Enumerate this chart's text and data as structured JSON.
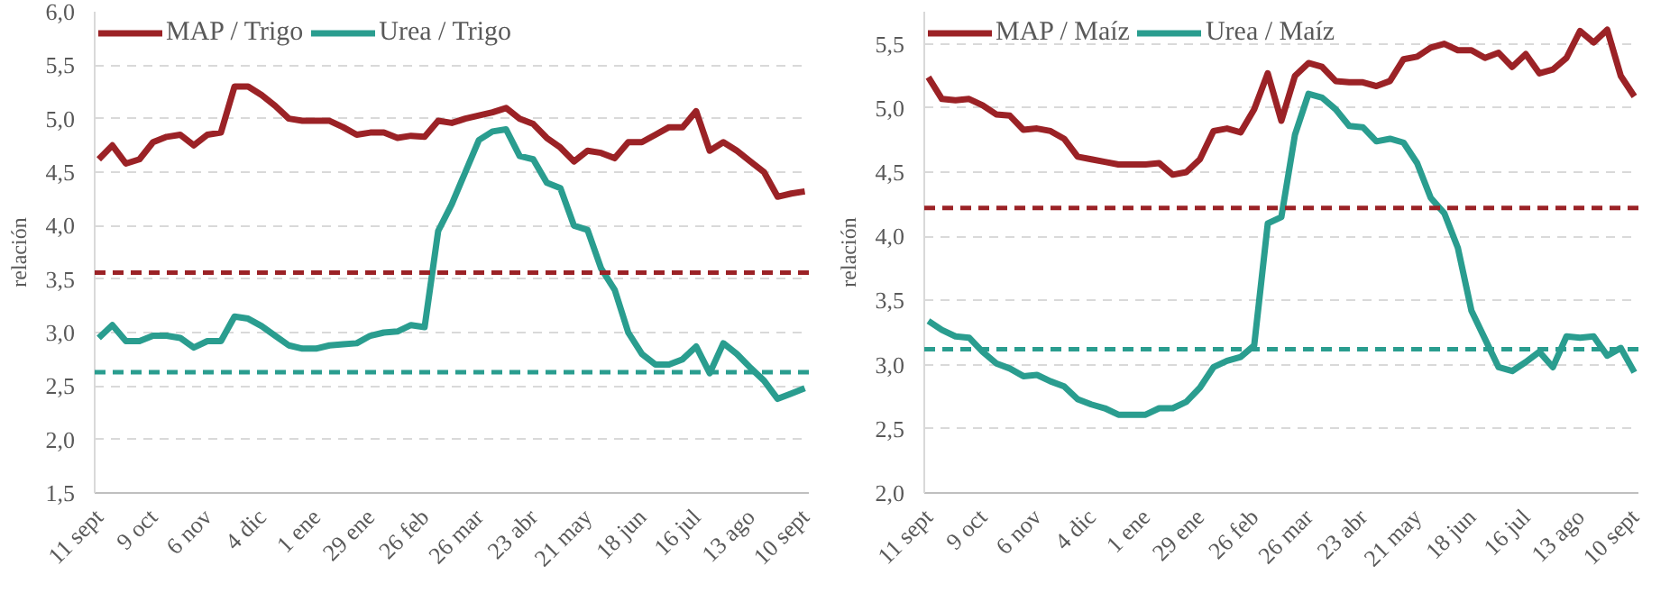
{
  "chart_data": [
    {
      "type": "line",
      "ylabel": "relación",
      "legend": "top left",
      "grid": "y",
      "line_style": "solid",
      "marker": "none",
      "categories": [
        "11 sept",
        null,
        null,
        null,
        "9 oct",
        null,
        null,
        null,
        "6 nov",
        null,
        null,
        null,
        "4 dic",
        null,
        null,
        null,
        "1 ene",
        null,
        null,
        null,
        "29 ene",
        null,
        null,
        null,
        "26 feb",
        null,
        null,
        null,
        "26 mar",
        null,
        null,
        null,
        "23 abr",
        null,
        null,
        null,
        "21 may",
        null,
        null,
        null,
        "18 jun",
        null,
        null,
        null,
        "16 jul",
        null,
        null,
        null,
        "13 ago",
        null,
        null,
        null,
        "10 sept"
      ],
      "ylim": [
        1.5,
        6.0
      ],
      "yticks": [
        {
          "value": 1.5,
          "label": "1,5"
        },
        {
          "value": 2.0,
          "label": "2,0"
        },
        {
          "value": 2.5,
          "label": "2,5"
        },
        {
          "value": 3.0,
          "label": "3,0"
        },
        {
          "value": 3.5,
          "label": "3,5"
        },
        {
          "value": 4.0,
          "label": "4,0"
        },
        {
          "value": 4.5,
          "label": "4,5"
        },
        {
          "value": 5.0,
          "label": "5,0"
        },
        {
          "value": 5.5,
          "label": "5,5"
        },
        {
          "value": 6.0,
          "label": "6,0"
        }
      ],
      "series": [
        {
          "name": "MAP / Trigo",
          "color": "#9b2226",
          "values": [
            4.62,
            4.75,
            4.58,
            4.62,
            4.78,
            4.83,
            4.85,
            4.75,
            4.85,
            4.87,
            5.3,
            5.3,
            5.22,
            5.12,
            5.0,
            4.98,
            4.98,
            4.98,
            4.92,
            4.85,
            4.87,
            4.87,
            4.82,
            4.84,
            4.83,
            4.98,
            4.96,
            5.0,
            5.03,
            5.06,
            5.1,
            5.0,
            4.95,
            4.82,
            4.73,
            4.6,
            4.7,
            4.68,
            4.63,
            4.78,
            4.78,
            4.85,
            4.92,
            4.92,
            5.07,
            4.7,
            4.78,
            4.7,
            4.6,
            4.5,
            4.27,
            4.3,
            4.32
          ]
        },
        {
          "name": "Urea / Trigo",
          "color": "#2a9d8f",
          "values": [
            2.95,
            3.07,
            2.92,
            2.92,
            2.97,
            2.97,
            2.95,
            2.86,
            2.92,
            2.92,
            3.15,
            3.13,
            3.06,
            2.97,
            2.88,
            2.85,
            2.85,
            2.88,
            2.89,
            2.9,
            2.97,
            3.0,
            3.01,
            3.07,
            3.05,
            3.95,
            4.2,
            4.5,
            4.8,
            4.88,
            4.9,
            4.65,
            4.62,
            4.4,
            4.35,
            4.0,
            3.96,
            3.6,
            3.4,
            3.0,
            2.8,
            2.7,
            2.7,
            2.75,
            2.87,
            2.62,
            2.9,
            2.8,
            2.67,
            2.55,
            2.38,
            2.43,
            2.48
          ]
        }
      ],
      "ref_lines": [
        {
          "axis": "y",
          "value": 3.56,
          "color": "#9b2226",
          "line_style": "dashed"
        },
        {
          "axis": "y",
          "value": 2.63,
          "color": "#2a9d8f",
          "line_style": "dashed"
        }
      ]
    },
    {
      "type": "line",
      "ylabel": "relación",
      "legend": "top left",
      "grid": "y",
      "line_style": "solid",
      "marker": "none",
      "categories": [
        "11 sept",
        null,
        null,
        null,
        "9 oct",
        null,
        null,
        null,
        "6 nov",
        null,
        null,
        null,
        "4 dic",
        null,
        null,
        null,
        "1 ene",
        null,
        null,
        null,
        "29 ene",
        null,
        null,
        null,
        "26 feb",
        null,
        null,
        null,
        "26 mar",
        null,
        null,
        null,
        "23 abr",
        null,
        null,
        null,
        "21 may",
        null,
        null,
        null,
        "18 jun",
        null,
        null,
        null,
        "16 jul",
        null,
        null,
        null,
        "13 ago",
        null,
        null,
        null,
        "10 sept"
      ],
      "ylim": [
        2.0,
        5.75
      ],
      "yticks": [
        {
          "value": 2.0,
          "label": "2,0"
        },
        {
          "value": 2.5,
          "label": "2,5"
        },
        {
          "value": 3.0,
          "label": "3,0"
        },
        {
          "value": 3.5,
          "label": "3,5"
        },
        {
          "value": 4.0,
          "label": "4,0"
        },
        {
          "value": 4.5,
          "label": "4,5"
        },
        {
          "value": 5.0,
          "label": "5,0"
        },
        {
          "value": 5.5,
          "label": "5,5"
        }
      ],
      "series": [
        {
          "name": "MAP / Maíz",
          "color": "#9b2226",
          "values": [
            5.24,
            5.07,
            5.06,
            5.07,
            5.02,
            4.95,
            4.94,
            4.83,
            4.84,
            4.82,
            4.76,
            4.62,
            4.6,
            4.58,
            4.56,
            4.56,
            4.56,
            4.57,
            4.48,
            4.5,
            4.6,
            4.82,
            4.84,
            4.81,
            4.99,
            5.27,
            4.9,
            5.25,
            5.35,
            5.32,
            5.21,
            5.2,
            5.2,
            5.17,
            5.21,
            5.38,
            5.4,
            5.47,
            5.5,
            5.45,
            5.45,
            5.39,
            5.43,
            5.32,
            5.42,
            5.27,
            5.3,
            5.39,
            5.6,
            5.51,
            5.61,
            5.25,
            5.09
          ]
        },
        {
          "name": "Urea / Maíz",
          "color": "#2a9d8f",
          "values": [
            3.34,
            3.27,
            3.22,
            3.21,
            3.1,
            3.01,
            2.97,
            2.91,
            2.92,
            2.87,
            2.83,
            2.73,
            2.69,
            2.66,
            2.61,
            2.61,
            2.61,
            2.66,
            2.66,
            2.71,
            2.82,
            2.98,
            3.03,
            3.06,
            3.15,
            4.1,
            4.15,
            4.79,
            5.11,
            5.08,
            4.99,
            4.86,
            4.85,
            4.74,
            4.76,
            4.73,
            4.57,
            4.3,
            4.18,
            3.91,
            3.42,
            3.2,
            2.98,
            2.95,
            3.02,
            3.1,
            2.98,
            3.22,
            3.21,
            3.22,
            3.07,
            3.13,
            2.94
          ]
        }
      ],
      "ref_lines": [
        {
          "axis": "y",
          "value": 4.22,
          "color": "#9b2226",
          "line_style": "dashed"
        },
        {
          "axis": "y",
          "value": 3.12,
          "color": "#2a9d8f",
          "line_style": "dashed"
        }
      ]
    }
  ]
}
